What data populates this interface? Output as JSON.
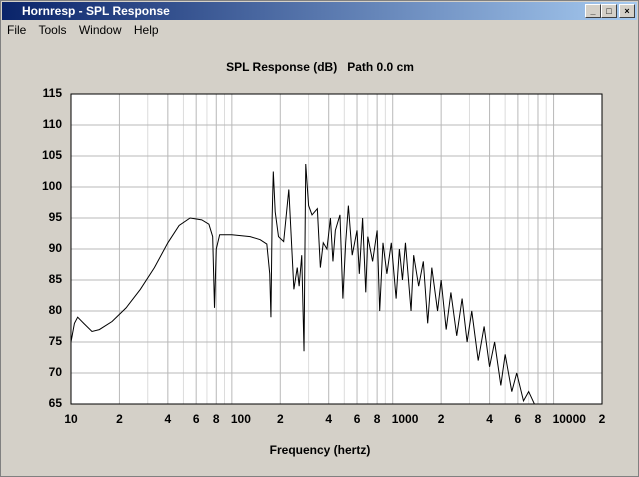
{
  "window": {
    "title": "Hornresp - SPL Response",
    "menu": [
      "File",
      "Tools",
      "Window",
      "Help"
    ]
  },
  "chart_data": {
    "type": "line",
    "title": "SPL Response (dB)   Path 0.0 cm",
    "x_label": "Frequency (hertz)",
    "x_scale": "log",
    "grid": true,
    "xlim": [
      10,
      20000
    ],
    "ylim": [
      65,
      115
    ],
    "yticks": [
      65,
      70,
      75,
      80,
      85,
      90,
      95,
      100,
      105,
      110,
      115
    ],
    "xticks": [
      10,
      {
        "value": 20,
        "label": "2"
      },
      {
        "value": 40,
        "label": "4"
      },
      {
        "value": 60,
        "label": "6"
      },
      {
        "value": 80,
        "label": "8"
      },
      100,
      {
        "value": 200,
        "label": "2"
      },
      {
        "value": 400,
        "label": "4"
      },
      {
        "value": 600,
        "label": "6"
      },
      {
        "value": 800,
        "label": "8"
      },
      1000,
      {
        "value": 2000,
        "label": "2"
      },
      {
        "value": 4000,
        "label": "4"
      },
      {
        "value": 6000,
        "label": "6"
      },
      {
        "value": 8000,
        "label": "8"
      },
      10000,
      {
        "value": 20000,
        "label": "2"
      }
    ],
    "xminorticks": [
      30,
      50,
      70,
      90,
      300,
      500,
      700,
      900,
      3000,
      5000,
      7000,
      9000
    ],
    "series": [
      {
        "color": "#000000",
        "x": [
          10,
          10.5,
          11,
          12,
          13.5,
          15,
          18,
          22,
          27,
          33,
          40,
          47,
          55,
          65,
          72,
          76,
          78,
          80,
          84,
          100,
          130,
          150,
          165,
          172,
          175,
          178,
          181,
          186,
          195,
          210,
          226,
          243,
          255,
          262,
          272,
          281,
          288,
          300,
          315,
          340,
          355,
          370,
          390,
          410,
          425,
          440,
          470,
          490,
          510,
          530,
          560,
          600,
          620,
          650,
          680,
          700,
          750,
          800,
          830,
          870,
          920,
          980,
          1050,
          1100,
          1150,
          1200,
          1300,
          1350,
          1450,
          1550,
          1650,
          1750,
          1900,
          2000,
          2150,
          2300,
          2500,
          2700,
          2900,
          3100,
          3400,
          3700,
          4000,
          4300,
          4700,
          5000,
          5500,
          5900,
          6500,
          7000,
          7600
        ],
        "values": [
          75,
          78,
          79,
          78,
          76.7,
          77,
          78.3,
          80.5,
          83.5,
          87,
          91,
          93.8,
          95,
          94.7,
          94,
          92,
          80.5,
          90,
          92.3,
          92.3,
          92,
          91.5,
          90.8,
          86,
          79,
          95,
          102.5,
          96,
          92,
          91.2,
          99.6,
          83.5,
          87,
          84,
          89,
          73.5,
          103.7,
          97,
          95.5,
          96.5,
          87,
          91,
          90,
          95,
          88,
          93,
          95.5,
          82,
          91,
          97,
          89,
          93,
          86,
          95,
          83,
          92,
          88,
          93,
          80,
          91,
          86,
          91,
          82,
          90,
          85,
          91,
          80,
          89,
          84,
          88,
          78,
          87,
          80,
          85,
          77,
          83,
          76,
          82,
          75,
          80,
          72,
          77.5,
          71,
          75,
          68,
          73,
          67,
          70,
          65.5,
          67,
          65
        ]
      }
    ]
  }
}
